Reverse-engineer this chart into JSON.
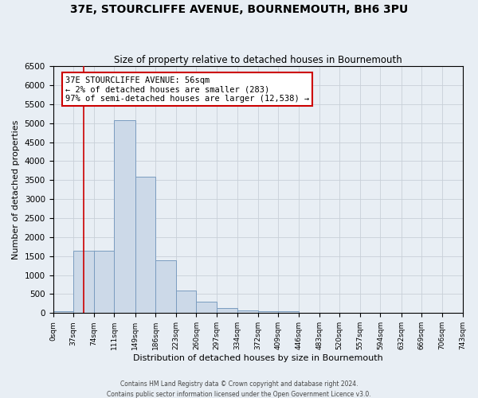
{
  "title": "37E, STOURCLIFFE AVENUE, BOURNEMOUTH, BH6 3PU",
  "subtitle": "Size of property relative to detached houses in Bournemouth",
  "xlabel": "Distribution of detached houses by size in Bournemouth",
  "ylabel": "Number of detached properties",
  "bar_color": "#ccd9e8",
  "bar_edge_color": "#7a9cbf",
  "bin_edges": [
    0,
    37,
    74,
    111,
    149,
    186,
    223,
    260,
    297,
    334,
    372,
    409,
    446,
    483,
    520,
    557,
    594,
    632,
    669,
    706,
    743
  ],
  "bin_labels": [
    "0sqm",
    "37sqm",
    "74sqm",
    "111sqm",
    "149sqm",
    "186sqm",
    "223sqm",
    "260sqm",
    "297sqm",
    "334sqm",
    "372sqm",
    "409sqm",
    "446sqm",
    "483sqm",
    "520sqm",
    "557sqm",
    "594sqm",
    "632sqm",
    "669sqm",
    "706sqm",
    "743sqm"
  ],
  "counts": [
    50,
    1650,
    1650,
    5070,
    3590,
    1400,
    600,
    300,
    140,
    80,
    50,
    50,
    0,
    0,
    0,
    0,
    0,
    0,
    0,
    0
  ],
  "property_line_x": 56,
  "annotation_title": "37E STOURCLIFFE AVENUE: 56sqm",
  "annotation_line1": "← 2% of detached houses are smaller (283)",
  "annotation_line2": "97% of semi-detached houses are larger (12,538) →",
  "annotation_box_color": "#ffffff",
  "annotation_box_edge_color": "#cc0000",
  "property_line_color": "#cc0000",
  "ylim": [
    0,
    6500
  ],
  "xlim": [
    0,
    743
  ],
  "grid_color": "#c8d0d8",
  "background_color": "#e8eef4",
  "fig_background_color": "#e8eef4",
  "footer1": "Contains HM Land Registry data © Crown copyright and database right 2024.",
  "footer2": "Contains public sector information licensed under the Open Government Licence v3.0.",
  "title_fontsize": 10,
  "subtitle_fontsize": 8.5,
  "xlabel_fontsize": 8,
  "ylabel_fontsize": 8,
  "xtick_fontsize": 6.5,
  "ytick_fontsize": 7.5,
  "footer_fontsize": 5.5,
  "annotation_fontsize": 7.5
}
